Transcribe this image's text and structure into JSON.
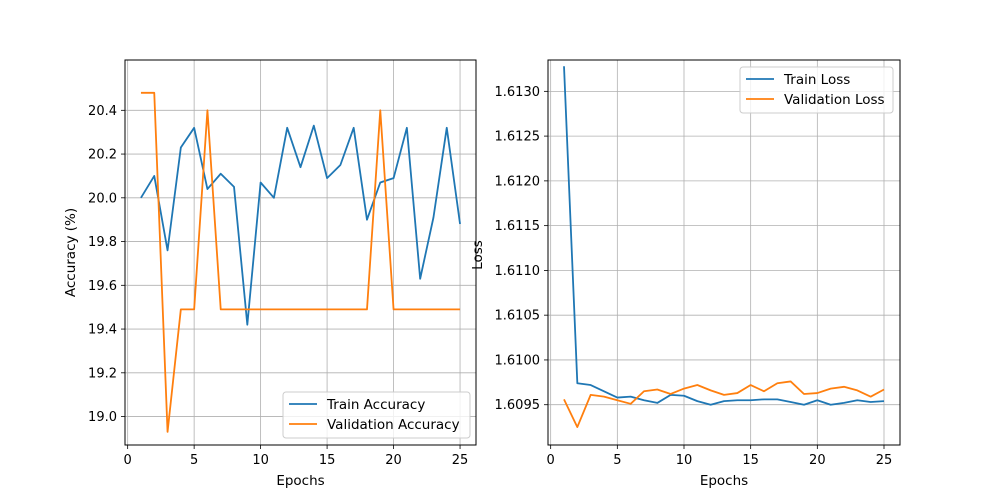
{
  "chart_data": [
    {
      "type": "line",
      "title": "",
      "xlabel": "Epochs",
      "ylabel": "Accuracy (%)",
      "xlim": [
        -0.2,
        26.2
      ],
      "ylim": [
        18.87,
        20.63
      ],
      "xticks": [
        0,
        5,
        10,
        15,
        20,
        25
      ],
      "yticks": [
        19.0,
        19.2,
        19.4,
        19.6,
        19.8,
        20.0,
        20.2,
        20.4
      ],
      "ytick_decimals": 1,
      "grid": true,
      "legend_position": "lower-right",
      "x": [
        1,
        2,
        3,
        4,
        5,
        6,
        7,
        8,
        9,
        10,
        11,
        12,
        13,
        14,
        15,
        16,
        17,
        18,
        19,
        20,
        21,
        22,
        23,
        24,
        25
      ],
      "series": [
        {
          "name": "Train Accuracy",
          "color": "#1f77b4",
          "values": [
            20.0,
            20.1,
            19.76,
            20.23,
            20.32,
            20.04,
            20.11,
            20.05,
            19.42,
            20.07,
            20.0,
            20.32,
            20.14,
            20.33,
            20.09,
            20.15,
            20.32,
            19.9,
            20.07,
            20.09,
            20.32,
            19.63,
            19.91,
            20.32,
            19.88
          ]
        },
        {
          "name": "Validation Accuracy",
          "color": "#ff7f0e",
          "values": [
            20.48,
            20.48,
            18.93,
            19.49,
            19.49,
            20.4,
            19.49,
            19.49,
            19.49,
            19.49,
            19.49,
            19.49,
            19.49,
            19.49,
            19.49,
            19.49,
            19.49,
            19.49,
            20.4,
            19.49,
            19.49,
            19.49,
            19.49,
            19.49,
            19.49
          ]
        }
      ]
    },
    {
      "type": "line",
      "title": "",
      "xlabel": "Epochs",
      "ylabel": "Loss",
      "xlim": [
        -0.2,
        26.2
      ],
      "ylim": [
        1.60905,
        1.61335
      ],
      "xticks": [
        0,
        5,
        10,
        15,
        20,
        25
      ],
      "yticks": [
        1.6095,
        1.61,
        1.6105,
        1.611,
        1.6115,
        1.612,
        1.6125,
        1.613
      ],
      "ytick_decimals": 4,
      "grid": true,
      "legend_position": "upper-right",
      "x": [
        1,
        2,
        3,
        4,
        5,
        6,
        7,
        8,
        9,
        10,
        11,
        12,
        13,
        14,
        15,
        16,
        17,
        18,
        19,
        20,
        21,
        22,
        23,
        24,
        25
      ],
      "series": [
        {
          "name": "Train Loss",
          "color": "#1f77b4",
          "values": [
            1.61328,
            1.60974,
            1.60972,
            1.60965,
            1.60958,
            1.60959,
            1.60955,
            1.60952,
            1.60961,
            1.6096,
            1.60954,
            1.6095,
            1.60954,
            1.60955,
            1.60955,
            1.60956,
            1.60956,
            1.60953,
            1.6095,
            1.60955,
            1.6095,
            1.60952,
            1.60955,
            1.60953,
            1.60954
          ]
        },
        {
          "name": "Validation Loss",
          "color": "#ff7f0e",
          "values": [
            1.60956,
            1.60925,
            1.60961,
            1.60959,
            1.60955,
            1.60951,
            1.60965,
            1.60967,
            1.60962,
            1.60968,
            1.60972,
            1.60966,
            1.60961,
            1.60963,
            1.60972,
            1.60965,
            1.60974,
            1.60976,
            1.60962,
            1.60963,
            1.60968,
            1.6097,
            1.60966,
            1.60959,
            1.60967
          ]
        }
      ]
    }
  ]
}
